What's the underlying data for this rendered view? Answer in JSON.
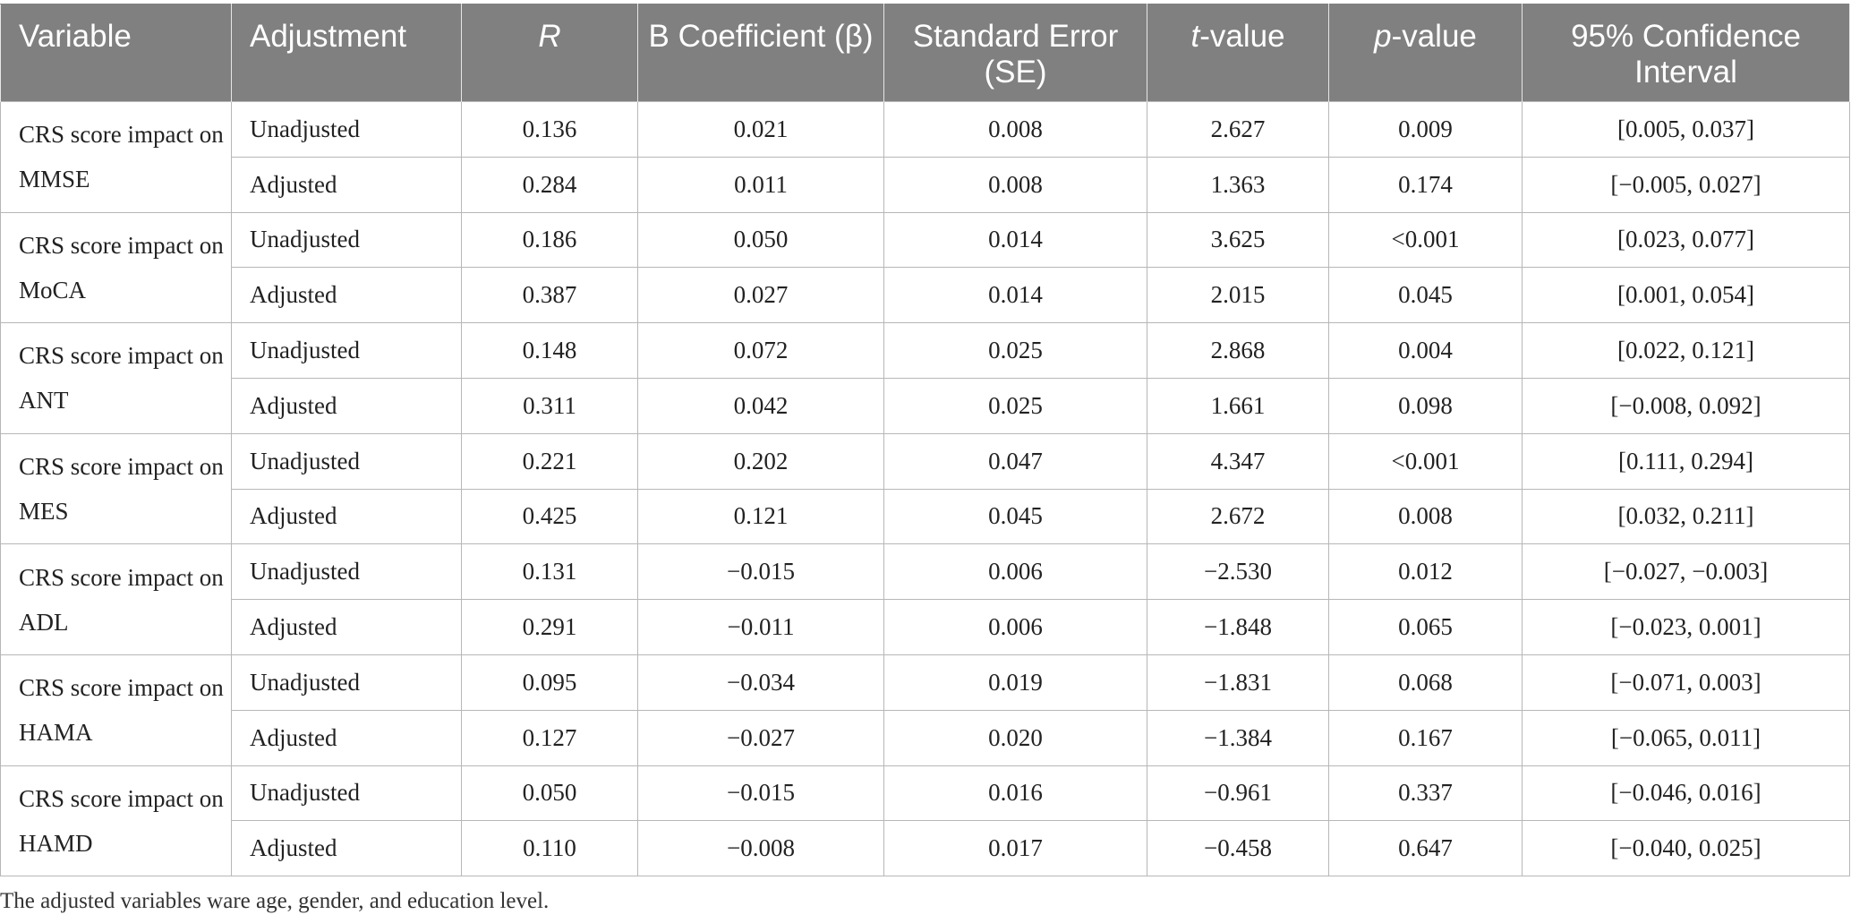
{
  "table": {
    "headers": {
      "variable": "Variable",
      "adjustment": "Adjustment",
      "r": "R",
      "b_coefficient": "B Coefficient (β)",
      "standard_error": "Standard Error (SE)",
      "t_value_italic": "t",
      "t_value_rest": "-value",
      "p_value_italic": "p",
      "p_value_rest": "-value",
      "confidence_interval": "95% Confidence Interval"
    },
    "groups": [
      {
        "variable": "CRS score impact on MMSE",
        "rows": [
          {
            "adjustment": "Unadjusted",
            "r": "0.136",
            "b": "0.021",
            "se": "0.008",
            "t": "2.627",
            "p": "0.009",
            "ci": "[0.005, 0.037]"
          },
          {
            "adjustment": "Adjusted",
            "r": "0.284",
            "b": "0.011",
            "se": "0.008",
            "t": "1.363",
            "p": "0.174",
            "ci": "[−0.005, 0.027]"
          }
        ]
      },
      {
        "variable": "CRS score impact on MoCA",
        "rows": [
          {
            "adjustment": "Unadjusted",
            "r": "0.186",
            "b": "0.050",
            "se": "0.014",
            "t": "3.625",
            "p": "<0.001",
            "ci": "[0.023, 0.077]"
          },
          {
            "adjustment": "Adjusted",
            "r": "0.387",
            "b": "0.027",
            "se": "0.014",
            "t": "2.015",
            "p": "0.045",
            "ci": "[0.001, 0.054]"
          }
        ]
      },
      {
        "variable": "CRS score impact on ANT",
        "rows": [
          {
            "adjustment": "Unadjusted",
            "r": "0.148",
            "b": "0.072",
            "se": "0.025",
            "t": "2.868",
            "p": "0.004",
            "ci": "[0.022, 0.121]"
          },
          {
            "adjustment": "Adjusted",
            "r": "0.311",
            "b": "0.042",
            "se": "0.025",
            "t": "1.661",
            "p": "0.098",
            "ci": "[−0.008, 0.092]"
          }
        ]
      },
      {
        "variable": "CRS score impact on MES",
        "rows": [
          {
            "adjustment": "Unadjusted",
            "r": "0.221",
            "b": "0.202",
            "se": "0.047",
            "t": "4.347",
            "p": "<0.001",
            "ci": "[0.111, 0.294]"
          },
          {
            "adjustment": "Adjusted",
            "r": "0.425",
            "b": "0.121",
            "se": "0.045",
            "t": "2.672",
            "p": "0.008",
            "ci": "[0.032, 0.211]"
          }
        ]
      },
      {
        "variable": "CRS score impact on ADL",
        "rows": [
          {
            "adjustment": "Unadjusted",
            "r": "0.131",
            "b": "−0.015",
            "se": "0.006",
            "t": "−2.530",
            "p": "0.012",
            "ci": "[−0.027, −0.003]"
          },
          {
            "adjustment": "Adjusted",
            "r": "0.291",
            "b": "−0.011",
            "se": "0.006",
            "t": "−1.848",
            "p": "0.065",
            "ci": "[−0.023, 0.001]"
          }
        ]
      },
      {
        "variable": "CRS score impact on HAMA",
        "rows": [
          {
            "adjustment": "Unadjusted",
            "r": "0.095",
            "b": "−0.034",
            "se": "0.019",
            "t": "−1.831",
            "p": "0.068",
            "ci": "[−0.071, 0.003]"
          },
          {
            "adjustment": "Adjusted",
            "r": "0.127",
            "b": "−0.027",
            "se": "0.020",
            "t": "−1.384",
            "p": "0.167",
            "ci": "[−0.065, 0.011]"
          }
        ]
      },
      {
        "variable": "CRS score impact on HAMD",
        "rows": [
          {
            "adjustment": "Unadjusted",
            "r": "0.050",
            "b": "−0.015",
            "se": "0.016",
            "t": "−0.961",
            "p": "0.337",
            "ci": "[−0.046, 0.016]"
          },
          {
            "adjustment": "Adjusted",
            "r": "0.110",
            "b": "−0.008",
            "se": "0.017",
            "t": "−0.458",
            "p": "0.647",
            "ci": "[−0.040, 0.025]"
          }
        ]
      }
    ]
  },
  "footnote": "The adjusted variables ware age, gender, and education level."
}
